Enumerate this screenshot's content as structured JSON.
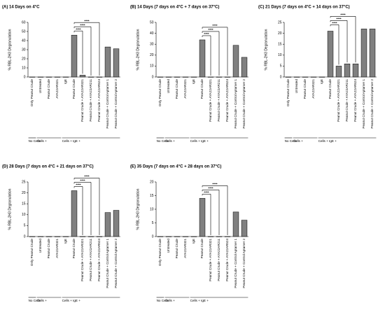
{
  "chart_data": [
    {
      "type": "bar",
      "title": "(A) 14 Days on 4°C",
      "ylabel": "% RBL-2H3 Degranulation",
      "categories": [
        "Only Peanut Crude",
        "Untreated",
        "Peanut Crude",
        "AYA22AR321",
        "IgE",
        "Peanut Crude",
        "Peanut Crude + AYA22AR321",
        "Peanut Crude + AYA22AR211",
        "Peanut Crude + AYA22AR524",
        "Peanut Crude + Control Aptamer 1",
        "Peanut Crude + Control Aptamer 2"
      ],
      "values": [
        0,
        0,
        0,
        0,
        0,
        46,
        2,
        0,
        0,
        33,
        31
      ],
      "color": "#808080",
      "ylim": [
        0,
        60
      ],
      "yticks": [
        0,
        10,
        20,
        30,
        40,
        50,
        60
      ],
      "groups": [
        {
          "label": "No Cells",
          "start": 0,
          "end": 0
        },
        {
          "label": "Cells +",
          "start": 1,
          "end": 3
        },
        {
          "label": "Cells + IgE +",
          "start": 4,
          "end": 10
        }
      ],
      "significance": [
        {
          "from": 5,
          "to": 6,
          "label": "****"
        },
        {
          "from": 5,
          "to": 7,
          "label": "****"
        },
        {
          "from": 5,
          "to": 8,
          "label": "****"
        }
      ]
    },
    {
      "type": "bar",
      "title": "(B) 14 Days (7 days on 4°C + 7 days on 37°C)",
      "ylabel": "% RBL-2H3 Degranulation",
      "categories": [
        "Only Peanut Crude",
        "Untreated",
        "Peanut Crude",
        "AYA22AR321",
        "IgE",
        "Peanut Crude",
        "Peanut Crude + AYA22AR321",
        "Peanut Crude + AYA22AR211",
        "Peanut Crude + AYA22AR524",
        "Peanut Crude + Control Aptamer 1",
        "Peanut Crude + Control Aptamer 2"
      ],
      "values": [
        0,
        0,
        0,
        0,
        0,
        34,
        0,
        0,
        0,
        29,
        18
      ],
      "color": "#808080",
      "ylim": [
        0,
        50
      ],
      "yticks": [
        0,
        10,
        20,
        30,
        40,
        50
      ],
      "groups": [
        {
          "label": "No Cells",
          "start": 0,
          "end": 0
        },
        {
          "label": "Cells +",
          "start": 1,
          "end": 3
        },
        {
          "label": "Cells + IgE +",
          "start": 4,
          "end": 10
        }
      ],
      "significance": [
        {
          "from": 5,
          "to": 6,
          "label": "****"
        },
        {
          "from": 5,
          "to": 7,
          "label": "****"
        },
        {
          "from": 5,
          "to": 8,
          "label": "****"
        }
      ]
    },
    {
      "type": "bar",
      "title": "(C) 21 Days (7 days on 4°C + 14 days on 37°C)",
      "ylabel": "% RBL-2H3 Degranulation",
      "categories": [
        "Only Peanut Crude",
        "Untreated",
        "Peanut Crude",
        "AYA22AR321",
        "IgE",
        "Peanut Crude",
        "Peanut Crude + AYA22AR321",
        "Peanut Crude + AYA22AR211",
        "Peanut Crude + AYA22AR524",
        "Peanut Crude + Control Aptamer 1",
        "Peanut Crude + Control Aptamer 2"
      ],
      "values": [
        0,
        0,
        0,
        0,
        0,
        21,
        5,
        6,
        6,
        22,
        22
      ],
      "color": "#808080",
      "ylim": [
        0,
        25
      ],
      "yticks": [
        0,
        5,
        10,
        15,
        20,
        25
      ],
      "groups": [
        {
          "label": "No Cells",
          "start": 0,
          "end": 0
        },
        {
          "label": "Cells +",
          "start": 1,
          "end": 3
        },
        {
          "label": "Cells + IgE +",
          "start": 4,
          "end": 10
        }
      ],
      "significance": [
        {
          "from": 5,
          "to": 6,
          "label": "****"
        },
        {
          "from": 5,
          "to": 7,
          "label": "****"
        },
        {
          "from": 5,
          "to": 8,
          "label": "****"
        }
      ]
    },
    {
      "type": "bar",
      "title": "(D) 28 Days (7 days on 4°C + 21 days on 37°C)",
      "ylabel": "% RBL-2H3 Degranulation",
      "categories": [
        "Only Peanut Crude",
        "Untreated",
        "Peanut Crude",
        "AYA22AR321",
        "IgE",
        "Peanut Crude",
        "Peanut Crude + AYA22AR321",
        "Peanut Crude + AYA22AR211",
        "Peanut Crude + AYA22AR524",
        "Peanut Crude + Control Aptamer 1",
        "Peanut Crude + Control Aptamer 2"
      ],
      "values": [
        0,
        0,
        0,
        0,
        0,
        21,
        0,
        0,
        0,
        11,
        12
      ],
      "color": "#808080",
      "ylim": [
        0,
        25
      ],
      "yticks": [
        0,
        5,
        10,
        15,
        20,
        25
      ],
      "groups": [
        {
          "label": "No Cells",
          "start": 0,
          "end": 0
        },
        {
          "label": "Cells +",
          "start": 1,
          "end": 3
        },
        {
          "label": "Cells + IgE +",
          "start": 4,
          "end": 10
        }
      ],
      "significance": [
        {
          "from": 5,
          "to": 6,
          "label": "****"
        },
        {
          "from": 5,
          "to": 7,
          "label": "****"
        },
        {
          "from": 5,
          "to": 8,
          "label": "****"
        }
      ]
    },
    {
      "type": "bar",
      "title": "(E) 35 Days (7 days on 4°C + 28 days on 37°C)",
      "ylabel": "% RBL-2H3 Degranulation",
      "categories": [
        "Only Peanut Crude",
        "Untreated",
        "Peanut Crude",
        "AYA22AR321",
        "IgE",
        "Peanut Crude",
        "Peanut Crude + AYA22AR321",
        "Peanut Crude + AYA22AR211",
        "Peanut Crude + AYA22AR524",
        "Peanut Crude + Control Aptamer 1",
        "Peanut Crude + Control Aptamer 2"
      ],
      "values": [
        0,
        0,
        0,
        0,
        0,
        14,
        0,
        0,
        0,
        9,
        6
      ],
      "color": "#808080",
      "ylim": [
        0,
        20
      ],
      "yticks": [
        0,
        5,
        10,
        15,
        20
      ],
      "groups": [
        {
          "label": "No Cells",
          "start": 0,
          "end": 0
        },
        {
          "label": "Cells +",
          "start": 1,
          "end": 3
        },
        {
          "label": "Cells + IgE +",
          "start": 4,
          "end": 10
        }
      ],
      "significance": [
        {
          "from": 5,
          "to": 6,
          "label": "****"
        },
        {
          "from": 5,
          "to": 7,
          "label": "****"
        },
        {
          "from": 5,
          "to": 8,
          "label": "****"
        }
      ]
    }
  ]
}
